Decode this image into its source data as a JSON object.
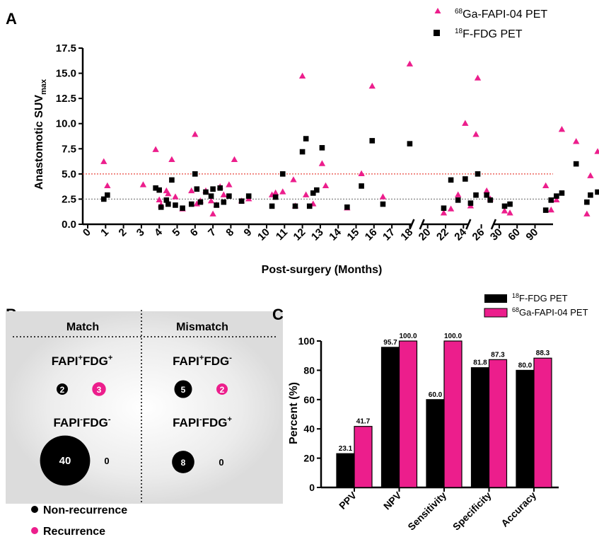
{
  "panels": {
    "a": "A",
    "b": "B",
    "c": "C"
  },
  "colors": {
    "fapi": "#ec1e8c",
    "fdg": "#000000",
    "ref_red": "#e8473f",
    "ref_gray": "#8a8a8a",
    "shade": "#d9d9d9"
  },
  "chart_data": [
    {
      "type": "scatter",
      "panel": "A",
      "xlabel": "Post-surgery (Months)",
      "ylabel_main": "Anastomotic SUV",
      "ylabel_sub": "max",
      "ylim": [
        0,
        17.5
      ],
      "yticks": [
        "0.0",
        "2.5",
        "5.0",
        "7.5",
        "10.0",
        "12.5",
        "15.0",
        "17.5"
      ],
      "xtick_labels": [
        "0",
        "1",
        "2",
        "3",
        "4",
        "5",
        "6",
        "7",
        "8",
        "9",
        "10",
        "11",
        "12",
        "13",
        "14",
        "15",
        "16",
        "17",
        "18",
        "20",
        "22",
        "24",
        "26",
        "30",
        "60",
        "90"
      ],
      "axis_breaks": [
        "18-20",
        "26-30",
        "30-60"
      ],
      "reference_lines": [
        5.0,
        2.5
      ],
      "legend": "top-right",
      "series": [
        {
          "name_sup": "68",
          "name": "Ga-FAPI-04 PET",
          "marker": "triangle",
          "points": [
            [
              0.9,
              6.2
            ],
            [
              1.1,
              3.8
            ],
            [
              3.1,
              3.9
            ],
            [
              3.8,
              7.4
            ],
            [
              4.0,
              2.4
            ],
            [
              4.1,
              1.9
            ],
            [
              4.4,
              3.3
            ],
            [
              4.5,
              3.0
            ],
            [
              4.7,
              6.4
            ],
            [
              4.9,
              2.7
            ],
            [
              5.3,
              1.5
            ],
            [
              5.8,
              3.3
            ],
            [
              6.0,
              8.9
            ],
            [
              6.1,
              2.0
            ],
            [
              6.3,
              2.3
            ],
            [
              6.6,
              3.3
            ],
            [
              6.9,
              2.3
            ],
            [
              7.0,
              1.0
            ],
            [
              7.2,
              1.9
            ],
            [
              7.4,
              3.7
            ],
            [
              7.6,
              2.9
            ],
            [
              7.9,
              3.9
            ],
            [
              8.2,
              6.4
            ],
            [
              8.6,
              2.3
            ],
            [
              9.0,
              2.5
            ],
            [
              10.3,
              2.9
            ],
            [
              10.5,
              3.1
            ],
            [
              10.9,
              3.2
            ],
            [
              11.5,
              4.4
            ],
            [
              11.6,
              1.8
            ],
            [
              12.0,
              14.7
            ],
            [
              12.2,
              2.9
            ],
            [
              12.6,
              2.0
            ],
            [
              13.1,
              6.0
            ],
            [
              13.3,
              3.8
            ],
            [
              14.5,
              1.6
            ],
            [
              15.3,
              5.0
            ],
            [
              15.9,
              13.7
            ],
            [
              16.5,
              2.7
            ],
            [
              18.0,
              15.9
            ],
            [
              19.9,
              1.1
            ],
            [
              20.3,
              1.5
            ],
            [
              20.7,
              2.9
            ],
            [
              21.1,
              10.0
            ],
            [
              21.4,
              1.8
            ],
            [
              21.7,
              8.9
            ],
            [
              21.8,
              14.5
            ],
            [
              22.3,
              3.3
            ],
            [
              22.5,
              2.5
            ],
            [
              23.3,
              1.3
            ],
            [
              23.6,
              1.1
            ],
            [
              25.6,
              3.8
            ],
            [
              25.9,
              1.4
            ],
            [
              26.2,
              2.4
            ],
            [
              26.5,
              9.4
            ],
            [
              27.3,
              8.2
            ],
            [
              27.9,
              1.0
            ],
            [
              28.1,
              4.8
            ],
            [
              28.5,
              7.2
            ],
            [
              29.2,
              2.4
            ]
          ]
        },
        {
          "name_sup": "18",
          "name": "F-FDG PET",
          "marker": "square",
          "points": [
            [
              0.9,
              2.5
            ],
            [
              1.1,
              2.9
            ],
            [
              3.8,
              3.6
            ],
            [
              4.0,
              3.4
            ],
            [
              4.1,
              1.7
            ],
            [
              4.4,
              2.4
            ],
            [
              4.5,
              2.0
            ],
            [
              4.7,
              4.4
            ],
            [
              4.9,
              1.9
            ],
            [
              5.3,
              1.6
            ],
            [
              5.8,
              2.0
            ],
            [
              6.0,
              5.0
            ],
            [
              6.1,
              3.5
            ],
            [
              6.3,
              2.2
            ],
            [
              6.6,
              3.2
            ],
            [
              6.9,
              2.8
            ],
            [
              7.0,
              3.5
            ],
            [
              7.2,
              1.9
            ],
            [
              7.4,
              3.6
            ],
            [
              7.6,
              2.2
            ],
            [
              7.9,
              2.8
            ],
            [
              8.6,
              2.3
            ],
            [
              9.0,
              2.8
            ],
            [
              10.3,
              1.8
            ],
            [
              10.5,
              2.7
            ],
            [
              10.9,
              5.0
            ],
            [
              11.6,
              1.8
            ],
            [
              12.0,
              7.2
            ],
            [
              12.2,
              8.5
            ],
            [
              12.4,
              1.8
            ],
            [
              12.6,
              3.1
            ],
            [
              12.8,
              3.4
            ],
            [
              13.1,
              7.6
            ],
            [
              14.5,
              1.7
            ],
            [
              15.3,
              3.8
            ],
            [
              15.9,
              8.3
            ],
            [
              16.5,
              2.0
            ],
            [
              18.0,
              8.0
            ],
            [
              19.9,
              1.6
            ],
            [
              20.3,
              4.4
            ],
            [
              20.7,
              2.4
            ],
            [
              21.1,
              4.5
            ],
            [
              21.4,
              2.1
            ],
            [
              21.7,
              2.9
            ],
            [
              21.8,
              5.0
            ],
            [
              22.3,
              2.9
            ],
            [
              22.5,
              2.4
            ],
            [
              23.3,
              1.8
            ],
            [
              23.6,
              2.0
            ],
            [
              25.6,
              1.4
            ],
            [
              25.9,
              2.4
            ],
            [
              26.2,
              2.8
            ],
            [
              26.5,
              3.1
            ],
            [
              27.3,
              6.0
            ],
            [
              27.9,
              2.2
            ],
            [
              28.1,
              2.9
            ],
            [
              28.5,
              3.2
            ],
            [
              29.2,
              1.9
            ]
          ]
        }
      ]
    },
    {
      "type": "bubble",
      "panel": "B",
      "columns": [
        "Match",
        "Mismatch"
      ],
      "groups": [
        {
          "label_pre": "FAPI",
          "sup1": "+",
          "label_mid": "FDG",
          "sup2": "+",
          "non_recurrence": 2,
          "recurrence": 3
        },
        {
          "label_pre": "FAPI",
          "sup1": "+",
          "label_mid": "FDG",
          "sup2": "-",
          "non_recurrence": 5,
          "recurrence": 2
        },
        {
          "label_pre": "FAPI",
          "sup1": "-",
          "label_mid": "FDG",
          "sup2": "-",
          "non_recurrence": 40,
          "recurrence": 0
        },
        {
          "label_pre": "FAPI",
          "sup1": "-",
          "label_mid": "FDG",
          "sup2": "+",
          "non_recurrence": 8,
          "recurrence": 0
        }
      ],
      "legend": [
        "Non-recurrence",
        "Recurrence"
      ]
    },
    {
      "type": "bar",
      "panel": "C",
      "categories": [
        "PPV",
        "NPV",
        "Sensitivity",
        "Specificity",
        "Accuracy"
      ],
      "ylabel": "Percent (%)",
      "ylim": [
        0,
        100
      ],
      "yticks": [
        "0",
        "20",
        "40",
        "60",
        "80",
        "100"
      ],
      "legend": "top-right",
      "series": [
        {
          "name_sup": "18",
          "name": "F-FDG PET",
          "values": [
            23.1,
            95.7,
            60.0,
            81.8,
            80.0
          ],
          "labels": [
            "23.1",
            "95.7",
            "60.0",
            "81.8",
            "80.0"
          ]
        },
        {
          "name_sup": "68",
          "name": "Ga-FAPI-04 PET",
          "values": [
            41.7,
            100.0,
            100.0,
            87.3,
            88.3
          ],
          "labels": [
            "41.7",
            "100.0",
            "100.0",
            "87.3",
            "88.3"
          ]
        }
      ]
    }
  ]
}
